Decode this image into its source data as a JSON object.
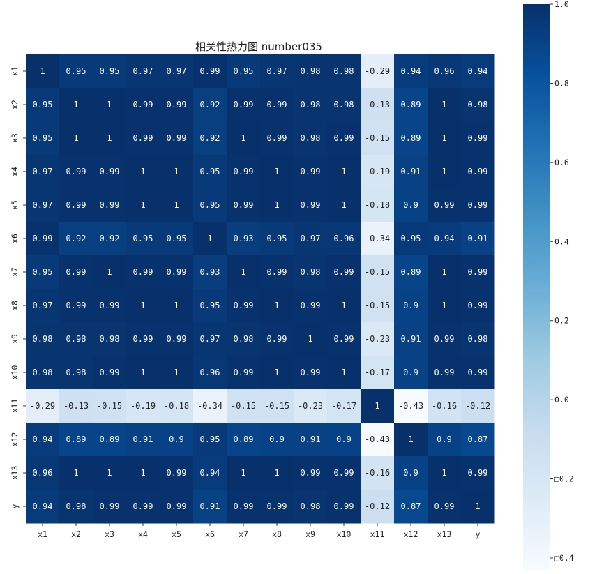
{
  "chart_data": {
    "type": "heatmap",
    "title": "相关性热力图 number035",
    "xlabel": "",
    "ylabel": "",
    "x_categories": [
      "x1",
      "x2",
      "x3",
      "x4",
      "x5",
      "x6",
      "x7",
      "x8",
      "x9",
      "x10",
      "x11",
      "x12",
      "x13",
      "y"
    ],
    "y_categories": [
      "x1",
      "x2",
      "x3",
      "x4",
      "x5",
      "x6",
      "x7",
      "x8",
      "x9",
      "x10",
      "x11",
      "x12",
      "x13",
      "y"
    ],
    "cell_labels": [
      [
        "1",
        "0.95",
        "0.95",
        "0.97",
        "0.97",
        "0.99",
        "0.95",
        "0.97",
        "0.98",
        "0.98",
        "-0.29",
        "0.94",
        "0.96",
        "0.94"
      ],
      [
        "0.95",
        "1",
        "1",
        "0.99",
        "0.99",
        "0.92",
        "0.99",
        "0.99",
        "0.98",
        "0.98",
        "-0.13",
        "0.89",
        "1",
        "0.98"
      ],
      [
        "0.95",
        "1",
        "1",
        "0.99",
        "0.99",
        "0.92",
        "1",
        "0.99",
        "0.98",
        "0.99",
        "-0.15",
        "0.89",
        "1",
        "0.99"
      ],
      [
        "0.97",
        "0.99",
        "0.99",
        "1",
        "1",
        "0.95",
        "0.99",
        "1",
        "0.99",
        "1",
        "-0.19",
        "0.91",
        "1",
        "0.99"
      ],
      [
        "0.97",
        "0.99",
        "0.99",
        "1",
        "1",
        "0.95",
        "0.99",
        "1",
        "0.99",
        "1",
        "-0.18",
        "0.9",
        "0.99",
        "0.99"
      ],
      [
        "0.99",
        "0.92",
        "0.92",
        "0.95",
        "0.95",
        "1",
        "0.93",
        "0.95",
        "0.97",
        "0.96",
        "-0.34",
        "0.95",
        "0.94",
        "0.91"
      ],
      [
        "0.95",
        "0.99",
        "1",
        "0.99",
        "0.99",
        "0.93",
        "1",
        "0.99",
        "0.98",
        "0.99",
        "-0.15",
        "0.89",
        "1",
        "0.99"
      ],
      [
        "0.97",
        "0.99",
        "0.99",
        "1",
        "1",
        "0.95",
        "0.99",
        "1",
        "0.99",
        "1",
        "-0.15",
        "0.9",
        "1",
        "0.99"
      ],
      [
        "0.98",
        "0.98",
        "0.98",
        "0.99",
        "0.99",
        "0.97",
        "0.98",
        "0.99",
        "1",
        "0.99",
        "-0.23",
        "0.91",
        "0.99",
        "0.98"
      ],
      [
        "0.98",
        "0.98",
        "0.99",
        "1",
        "1",
        "0.96",
        "0.99",
        "1",
        "0.99",
        "1",
        "-0.17",
        "0.9",
        "0.99",
        "0.99"
      ],
      [
        "-0.29",
        "-0.13",
        "-0.15",
        "-0.19",
        "-0.18",
        "-0.34",
        "-0.15",
        "-0.15",
        "-0.23",
        "-0.17",
        "1",
        "-0.43",
        "-0.16",
        "-0.12"
      ],
      [
        "0.94",
        "0.89",
        "0.89",
        "0.91",
        "0.9",
        "0.95",
        "0.89",
        "0.9",
        "0.91",
        "0.9",
        "-0.43",
        "1",
        "0.9",
        "0.87"
      ],
      [
        "0.96",
        "1",
        "1",
        "1",
        "0.99",
        "0.94",
        "1",
        "1",
        "0.99",
        "0.99",
        "-0.16",
        "0.9",
        "1",
        "0.99"
      ],
      [
        "0.94",
        "0.98",
        "0.99",
        "0.99",
        "0.99",
        "0.91",
        "0.99",
        "0.99",
        "0.98",
        "0.99",
        "-0.12",
        "0.87",
        "0.99",
        "1"
      ]
    ],
    "values": [
      [
        1,
        0.95,
        0.95,
        0.97,
        0.97,
        0.99,
        0.95,
        0.97,
        0.98,
        0.98,
        -0.29,
        0.94,
        0.96,
        0.94
      ],
      [
        0.95,
        1,
        1,
        0.99,
        0.99,
        0.92,
        0.99,
        0.99,
        0.98,
        0.98,
        -0.13,
        0.89,
        1,
        0.98
      ],
      [
        0.95,
        1,
        1,
        0.99,
        0.99,
        0.92,
        1,
        0.99,
        0.98,
        0.99,
        -0.15,
        0.89,
        1,
        0.99
      ],
      [
        0.97,
        0.99,
        0.99,
        1,
        1,
        0.95,
        0.99,
        1,
        0.99,
        1,
        -0.19,
        0.91,
        1,
        0.99
      ],
      [
        0.97,
        0.99,
        0.99,
        1,
        1,
        0.95,
        0.99,
        1,
        0.99,
        1,
        -0.18,
        0.9,
        0.99,
        0.99
      ],
      [
        0.99,
        0.92,
        0.92,
        0.95,
        0.95,
        1,
        0.93,
        0.95,
        0.97,
        0.96,
        -0.34,
        0.95,
        0.94,
        0.91
      ],
      [
        0.95,
        0.99,
        1,
        0.99,
        0.99,
        0.93,
        1,
        0.99,
        0.98,
        0.99,
        -0.15,
        0.89,
        1,
        0.99
      ],
      [
        0.97,
        0.99,
        0.99,
        1,
        1,
        0.95,
        0.99,
        1,
        0.99,
        1,
        -0.15,
        0.9,
        1,
        0.99
      ],
      [
        0.98,
        0.98,
        0.98,
        0.99,
        0.99,
        0.97,
        0.98,
        0.99,
        1,
        0.99,
        -0.23,
        0.91,
        0.99,
        0.98
      ],
      [
        0.98,
        0.98,
        0.99,
        1,
        1,
        0.96,
        0.99,
        1,
        0.99,
        1,
        -0.17,
        0.9,
        0.99,
        0.99
      ],
      [
        -0.29,
        -0.13,
        -0.15,
        -0.19,
        -0.18,
        -0.34,
        -0.15,
        -0.15,
        -0.23,
        -0.17,
        1,
        -0.43,
        -0.16,
        -0.12
      ],
      [
        0.94,
        0.89,
        0.89,
        0.91,
        0.9,
        0.95,
        0.89,
        0.9,
        0.91,
        0.9,
        -0.43,
        1,
        0.9,
        0.87
      ],
      [
        0.96,
        1,
        1,
        1,
        0.99,
        0.94,
        1,
        1,
        0.99,
        0.99,
        -0.16,
        0.9,
        1,
        0.99
      ],
      [
        0.94,
        0.98,
        0.99,
        0.99,
        0.99,
        0.91,
        0.99,
        0.99,
        0.98,
        0.99,
        -0.12,
        0.87,
        0.99,
        1
      ]
    ],
    "colorbar": {
      "min": -0.43,
      "max": 1.0,
      "ticks": [
        1.0,
        0.8,
        0.6,
        0.4,
        0.2,
        0.0,
        -0.2,
        -0.4
      ],
      "tick_labels": [
        "1.0",
        "0.8",
        "0.6",
        "0.4",
        "0.2",
        "0.0",
        "□0.2",
        "□0.4"
      ],
      "colormap": "Blues",
      "low_color": "#f7fbff",
      "high_color": "#08306b"
    },
    "grid": false,
    "text_color_dark_bg": "#ffffff",
    "text_color_light_bg": "#222222"
  }
}
